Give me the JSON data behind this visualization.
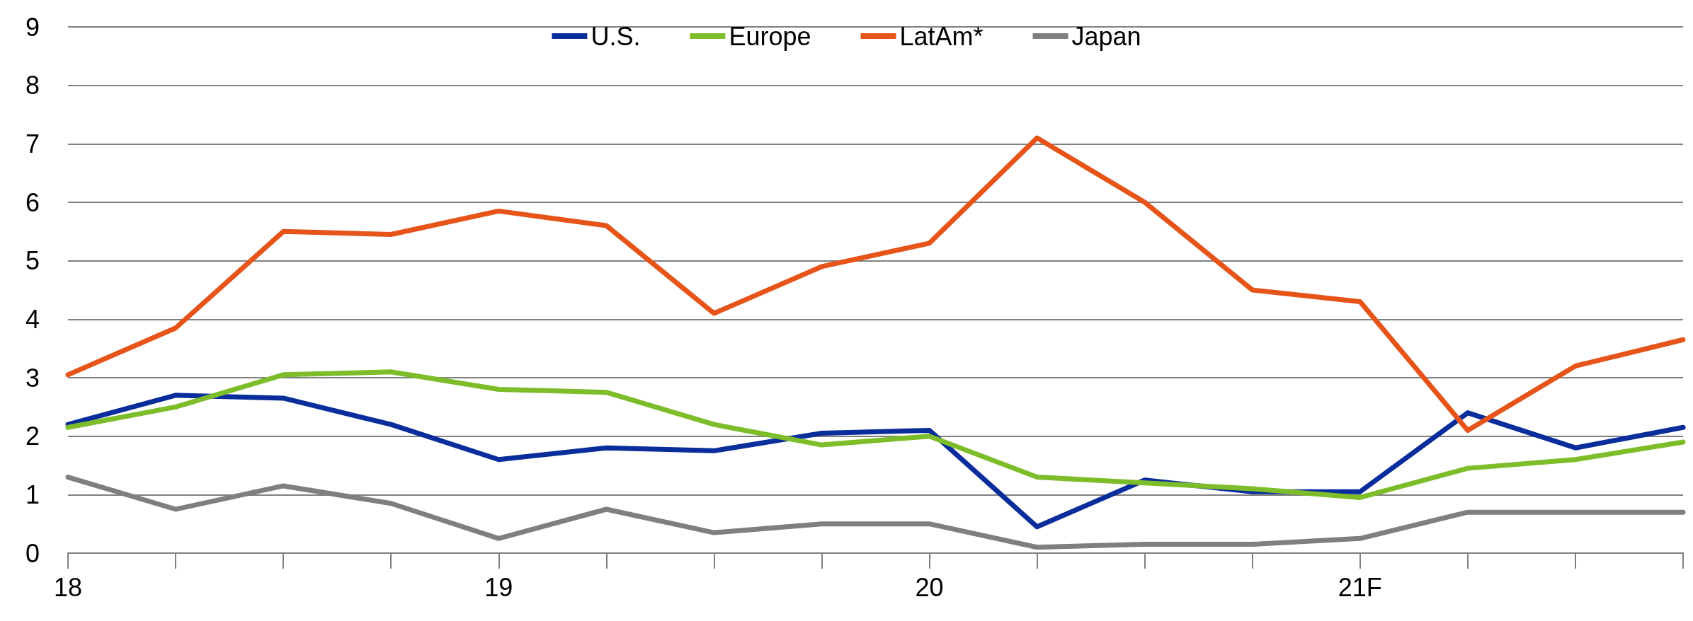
{
  "chart_data": {
    "type": "line",
    "categories": [
      "18",
      null,
      null,
      null,
      "19",
      null,
      null,
      null,
      "20",
      null,
      null,
      null,
      "21F",
      null,
      null,
      null
    ],
    "series": [
      {
        "name": "U.S.",
        "color": "#0a2d9c",
        "values": [
          2.2,
          2.7,
          2.65,
          2.2,
          1.6,
          1.8,
          1.75,
          2.05,
          2.1,
          0.45,
          1.25,
          1.05,
          1.05,
          2.4,
          1.8,
          2.15
        ]
      },
      {
        "name": "Europe",
        "color": "#7dbd2a",
        "values": [
          2.15,
          2.5,
          3.05,
          3.1,
          2.8,
          2.75,
          2.2,
          1.85,
          2.0,
          1.3,
          1.2,
          1.1,
          0.95,
          1.45,
          1.6,
          1.9
        ]
      },
      {
        "name": "LatAm*",
        "color": "#e6541a",
        "values": [
          3.05,
          3.85,
          5.5,
          5.45,
          5.85,
          5.6,
          4.1,
          4.9,
          5.3,
          7.1,
          6.0,
          4.5,
          4.3,
          2.1,
          3.2,
          3.65
        ]
      },
      {
        "name": "Japan",
        "color": "#7f7f7f",
        "values": [
          1.3,
          0.75,
          1.15,
          0.85,
          0.25,
          0.75,
          0.35,
          0.5,
          0.5,
          0.1,
          0.15,
          0.15,
          0.25,
          0.7,
          0.7,
          0.7
        ]
      }
    ],
    "ylim": [
      0,
      9
    ],
    "yticks": [
      0,
      1,
      2,
      3,
      4,
      5,
      6,
      7,
      8,
      9
    ],
    "grid": "y",
    "legend": "top",
    "marker": "none",
    "line_style": "solid"
  }
}
